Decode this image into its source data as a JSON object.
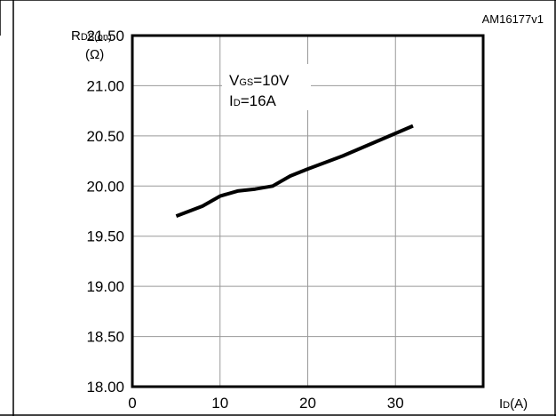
{
  "figure_code": "AM16177v1",
  "chart_data": {
    "type": "line",
    "ylabel_main": "R",
    "ylabel_sub": "DS(on)",
    "ylabel_unit": "(Ω)",
    "xlabel_main": "I",
    "xlabel_sub": "D",
    "xlabel_unit": "(A)",
    "xlim": [
      0,
      40
    ],
    "ylim": [
      18.0,
      21.5
    ],
    "x_ticks": [
      {
        "value": 0,
        "label": "0"
      },
      {
        "value": 10,
        "label": "10"
      },
      {
        "value": 20,
        "label": "20"
      },
      {
        "value": 30,
        "label": "30"
      }
    ],
    "y_ticks": [
      {
        "value": 18.0,
        "label": "18.00"
      },
      {
        "value": 18.5,
        "label": "18.50"
      },
      {
        "value": 19.0,
        "label": "19.00"
      },
      {
        "value": 19.5,
        "label": "19.50"
      },
      {
        "value": 20.0,
        "label": "20.00"
      },
      {
        "value": 20.5,
        "label": "20.50"
      },
      {
        "value": 21.0,
        "label": "21.00"
      },
      {
        "value": 21.5,
        "label": "21.50"
      }
    ],
    "grid": true,
    "annotation": [
      {
        "main": "V",
        "sub": "GS",
        "rest": "=10V"
      },
      {
        "main": "I",
        "sub": "D",
        "rest": "=16A"
      }
    ],
    "series": [
      {
        "x": [
          5,
          8,
          10,
          12,
          14,
          16,
          18,
          20,
          24,
          28,
          32
        ],
        "y": [
          19.7,
          19.8,
          19.9,
          19.95,
          19.97,
          20.0,
          20.1,
          20.17,
          20.3,
          20.45,
          20.6
        ]
      }
    ]
  }
}
